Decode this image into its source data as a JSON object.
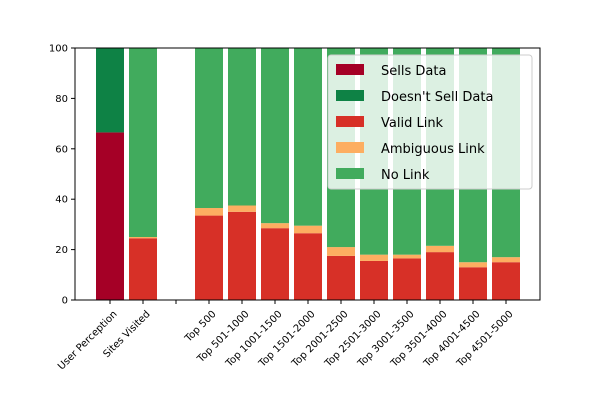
{
  "chart_data": {
    "type": "bar",
    "stacked": true,
    "title": "",
    "xlabel": "",
    "ylabel": "",
    "ylim": [
      0,
      100
    ],
    "yticks": [
      0,
      20,
      40,
      60,
      80,
      100
    ],
    "grid": false,
    "legend_position": "top-right",
    "categories": [
      "User Perception",
      "Sites Visited",
      "",
      "Top 500",
      "Top 501-1000",
      "Top 1001-1500",
      "Top 1501-2000",
      "Top 2001-2500",
      "Top 2501-3000",
      "Top 3001-3500",
      "Top 3501-4000",
      "Top 4001-4500",
      "Top 4501-5000"
    ],
    "series": [
      {
        "name": "Sells Data",
        "color": "#a50026",
        "values": [
          66.5,
          0,
          0,
          0,
          0,
          0,
          0,
          0,
          0,
          0,
          0,
          0,
          0
        ]
      },
      {
        "name": "Doesn't Sell Data",
        "color": "#0e8245",
        "values": [
          33.5,
          0,
          0,
          0,
          0,
          0,
          0,
          0,
          0,
          0,
          0,
          0,
          0
        ]
      },
      {
        "name": "Valid Link",
        "color": "#d73027",
        "values": [
          0,
          24.5,
          0,
          33.5,
          35,
          28.5,
          26.5,
          17.5,
          15.5,
          16.5,
          19,
          13,
          15
        ]
      },
      {
        "name": "Ambiguous Link",
        "color": "#fdae61",
        "values": [
          0,
          0.5,
          0,
          3,
          2.5,
          2,
          3,
          3.5,
          2.5,
          1.5,
          2.5,
          2,
          2
        ]
      },
      {
        "name": "No Link",
        "color": "#41ab5d",
        "values": [
          0,
          75,
          0,
          63.5,
          62.5,
          69.5,
          70.5,
          79,
          82,
          82,
          78.5,
          85,
          83
        ]
      }
    ]
  }
}
